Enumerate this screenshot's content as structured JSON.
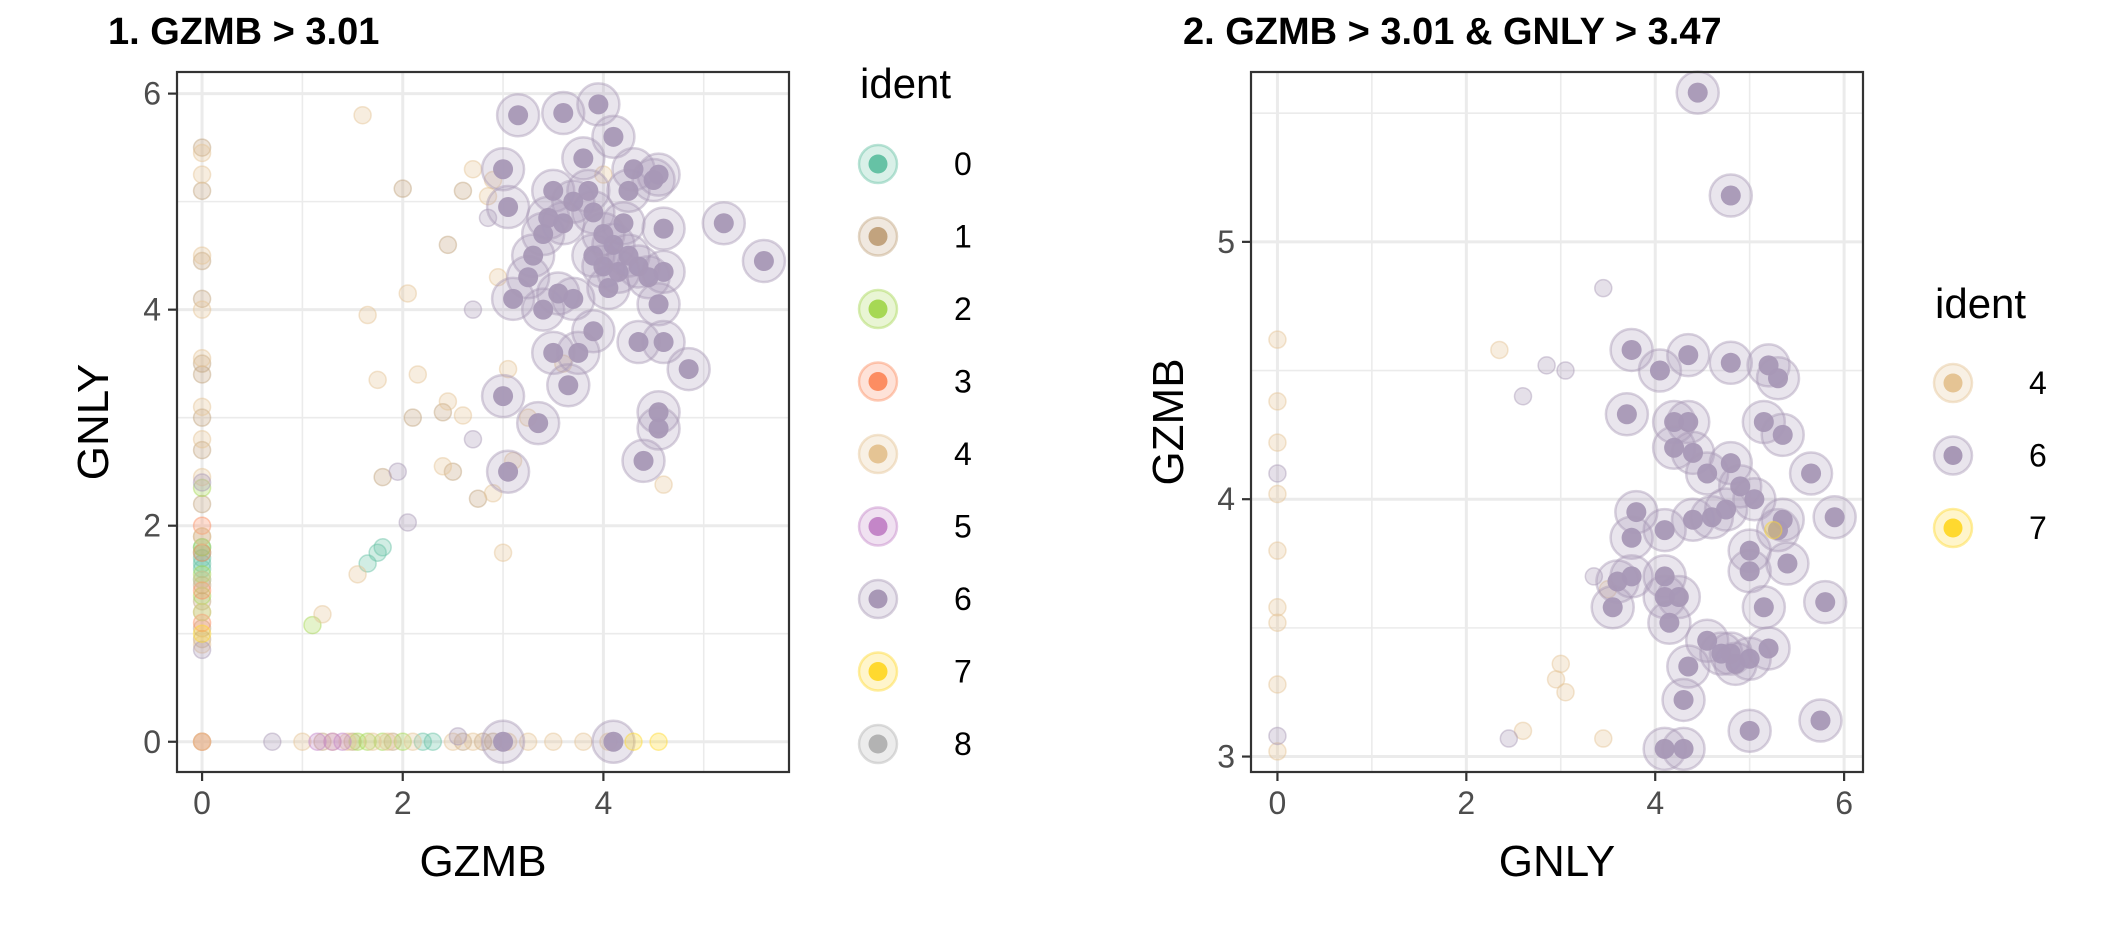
{
  "colors": {
    "0": "#66C2A5",
    "1": "#C2A37E",
    "2": "#A6D854",
    "3": "#FC8D62",
    "4": "#E5C494",
    "5": "#C486C8",
    "6": "#A898B6",
    "7": "#FFD92F",
    "8": "#B3B3B3"
  },
  "chart_data": [
    {
      "type": "scatter",
      "title": "1. GZMB > 3.01",
      "xlabel": "GZMB",
      "ylabel": "GNLY",
      "xlim": [
        -0.25,
        5.85
      ],
      "ylim": [
        -0.28,
        6.2
      ],
      "xticks": [
        0,
        2,
        4
      ],
      "yticks": [
        0,
        2,
        4,
        6
      ],
      "grid": true,
      "legend": {
        "title": "ident",
        "position": "right",
        "entries": [
          "0",
          "1",
          "2",
          "3",
          "4",
          "5",
          "6",
          "7",
          "8"
        ]
      },
      "series": [
        {
          "name": "0",
          "points": [
            [
              0,
              1.5
            ],
            [
              0,
              1.6
            ],
            [
              0,
              1.7
            ],
            [
              0,
              1.75
            ],
            [
              0,
              1.8
            ],
            [
              0,
              1.65
            ],
            [
              1.75,
              1.75
            ],
            [
              1.8,
              1.8
            ],
            [
              1.65,
              1.65
            ],
            [
              2.2,
              0
            ],
            [
              2.3,
              0
            ]
          ]
        },
        {
          "name": "1",
          "points": [
            [
              0,
              0
            ],
            [
              0,
              0.95
            ],
            [
              0,
              1.05
            ],
            [
              0,
              1.3
            ],
            [
              0,
              1.45
            ],
            [
              0,
              1.9
            ],
            [
              0,
              2.2
            ],
            [
              0,
              2.7
            ],
            [
              0,
              3.0
            ],
            [
              0,
              3.4
            ],
            [
              0,
              3.5
            ],
            [
              0,
              4.1
            ],
            [
              0,
              4.45
            ],
            [
              0,
              5.1
            ],
            [
              0,
              5.5
            ],
            [
              2.0,
              5.12
            ],
            [
              2.1,
              3.0
            ],
            [
              1.8,
              2.45
            ],
            [
              2.75,
              2.25
            ],
            [
              2.4,
              3.05
            ],
            [
              2.5,
              2.5
            ],
            [
              2.45,
              4.6
            ],
            [
              2.6,
              5.1
            ],
            [
              1.2,
              0
            ],
            [
              1.5,
              0
            ],
            [
              1.9,
              0
            ],
            [
              2.6,
              0
            ],
            [
              2.8,
              0
            ],
            [
              2.9,
              0
            ]
          ]
        },
        {
          "name": "2",
          "points": [
            [
              0,
              1.2
            ],
            [
              0,
              1.35
            ],
            [
              0,
              1.55
            ],
            [
              0,
              1.8
            ],
            [
              0,
              2.35
            ],
            [
              1.1,
              1.08
            ],
            [
              1.55,
              0
            ],
            [
              1.65,
              0
            ],
            [
              1.8,
              0
            ],
            [
              2.0,
              0
            ]
          ]
        },
        {
          "name": "3",
          "points": [
            [
              0,
              0
            ],
            [
              0,
              1.75
            ],
            [
              0,
              2.0
            ],
            [
              0,
              1.4
            ],
            [
              0,
              1.1
            ]
          ]
        },
        {
          "name": "4",
          "points": [
            [
              0,
              0
            ],
            [
              0,
              0.9
            ],
            [
              0,
              1.2
            ],
            [
              0,
              1.5
            ],
            [
              0,
              1.9
            ],
            [
              0,
              2.45
            ],
            [
              0,
              2.8
            ],
            [
              0,
              3.1
            ],
            [
              0,
              3.55
            ],
            [
              0,
              4.0
            ],
            [
              0,
              4.5
            ],
            [
              0,
              5.25
            ],
            [
              0,
              5.45
            ],
            [
              1.65,
              3.95
            ],
            [
              1.75,
              3.35
            ],
            [
              1.55,
              1.55
            ],
            [
              1.2,
              1.18
            ],
            [
              2.05,
              4.15
            ],
            [
              2.15,
              3.4
            ],
            [
              2.45,
              3.15
            ],
            [
              2.4,
              2.55
            ],
            [
              2.6,
              3.02
            ],
            [
              2.7,
              5.3
            ],
            [
              2.9,
              5.2
            ],
            [
              2.95,
              4.3
            ],
            [
              3.0,
              1.75
            ],
            [
              3.05,
              3.45
            ],
            [
              3.1,
              2.6
            ],
            [
              3.25,
              3.0
            ],
            [
              3.6,
              3.5
            ],
            [
              4.0,
              5.25
            ],
            [
              4.6,
              2.38
            ],
            [
              1.6,
              5.8
            ],
            [
              1.0,
              0
            ],
            [
              1.3,
              0
            ],
            [
              1.45,
              0
            ],
            [
              1.7,
              0
            ],
            [
              1.85,
              0
            ],
            [
              2.1,
              0
            ],
            [
              2.5,
              0
            ],
            [
              2.7,
              0
            ],
            [
              3.05,
              0
            ],
            [
              3.25,
              0
            ],
            [
              3.5,
              0
            ],
            [
              3.8,
              0
            ],
            [
              4.05,
              0
            ],
            [
              2.9,
              2.3
            ],
            [
              2.85,
              5.05
            ]
          ]
        },
        {
          "name": "5",
          "points": [
            [
              1.15,
              0
            ],
            [
              1.3,
              0
            ],
            [
              1.4,
              0
            ]
          ]
        },
        {
          "name": "6",
          "points": [
            [
              3.15,
              5.8
            ],
            [
              3.6,
              5.82
            ],
            [
              3.95,
              5.9
            ],
            [
              4.1,
              5.6
            ],
            [
              3.05,
              4.95
            ],
            [
              3.1,
              4.1
            ],
            [
              3.3,
              4.5
            ],
            [
              3.5,
              5.1
            ],
            [
              3.6,
              4.8
            ],
            [
              3.7,
              5.0
            ],
            [
              3.8,
              5.4
            ],
            [
              3.9,
              4.9
            ],
            [
              4.0,
              4.4
            ],
            [
              4.05,
              4.2
            ],
            [
              4.1,
              4.6
            ],
            [
              4.2,
              4.8
            ],
            [
              4.25,
              5.1
            ],
            [
              4.3,
              5.3
            ],
            [
              4.35,
              4.4
            ],
            [
              4.45,
              4.3
            ],
            [
              4.5,
              5.2
            ],
            [
              4.55,
              5.25
            ],
            [
              4.6,
              4.75
            ],
            [
              4.6,
              4.35
            ],
            [
              4.55,
              4.05
            ],
            [
              5.2,
              4.8
            ],
            [
              5.6,
              4.45
            ],
            [
              4.85,
              3.45
            ],
            [
              4.6,
              3.7
            ],
            [
              4.35,
              3.7
            ],
            [
              3.9,
              3.8
            ],
            [
              3.75,
              3.6
            ],
            [
              3.65,
              3.3
            ],
            [
              3.5,
              3.6
            ],
            [
              3.4,
              4.0
            ],
            [
              3.55,
              4.15
            ],
            [
              3.7,
              4.1
            ],
            [
              3.35,
              2.95
            ],
            [
              3.05,
              2.5
            ],
            [
              4.4,
              2.6
            ],
            [
              4.55,
              3.05
            ],
            [
              4.55,
              2.9
            ],
            [
              3.25,
              4.3
            ],
            [
              3.4,
              4.7
            ],
            [
              3.9,
              4.5
            ],
            [
              4.15,
              4.35
            ],
            [
              4.25,
              4.5
            ],
            [
              3.45,
              4.85
            ],
            [
              3.85,
              5.1
            ],
            [
              4.0,
              4.7
            ],
            [
              3.0,
              0
            ],
            [
              4.1,
              0
            ],
            [
              0.7,
              0
            ],
            [
              0,
              0.85
            ],
            [
              0,
              2.4
            ],
            [
              2.05,
              2.03
            ],
            [
              1.95,
              2.5
            ],
            [
              2.7,
              2.8
            ],
            [
              3.0,
              3.2
            ],
            [
              2.85,
              4.85
            ],
            [
              2.7,
              4.0
            ],
            [
              3.0,
              5.3
            ],
            [
              2.55,
              0.05
            ]
          ]
        },
        {
          "name": "7",
          "points": [
            [
              0,
              1.0
            ],
            [
              4.3,
              0
            ],
            [
              4.55,
              0
            ]
          ]
        },
        {
          "name": "8",
          "points": []
        }
      ]
    },
    {
      "type": "scatter",
      "title": "2. GZMB > 3.01 & GNLY > 3.47",
      "xlabel": "GNLY",
      "ylabel": "GZMB",
      "xlim": [
        -0.28,
        6.2
      ],
      "ylim": [
        2.94,
        5.66
      ],
      "xticks": [
        0,
        2,
        4,
        6
      ],
      "yticks": [
        3,
        4,
        5
      ],
      "grid": true,
      "legend": {
        "title": "ident",
        "position": "right",
        "entries": [
          "4",
          "6",
          "7"
        ]
      },
      "series": [
        {
          "name": "4",
          "points": [
            [
              0,
              3.02
            ],
            [
              0,
              3.28
            ],
            [
              0,
              3.52
            ],
            [
              0,
              3.58
            ],
            [
              0,
              3.8
            ],
            [
              0,
              4.02
            ],
            [
              0,
              4.22
            ],
            [
              0,
              4.38
            ],
            [
              0,
              4.62
            ],
            [
              2.35,
              4.58
            ],
            [
              2.6,
              3.1
            ],
            [
              2.95,
              3.3
            ],
            [
              3.0,
              3.36
            ],
            [
              3.05,
              3.25
            ],
            [
              3.45,
              3.07
            ],
            [
              3.5,
              3.65
            ]
          ]
        },
        {
          "name": "6",
          "points": [
            [
              4.45,
              5.58
            ],
            [
              4.8,
              5.18
            ],
            [
              3.75,
              4.58
            ],
            [
              4.05,
              4.5
            ],
            [
              4.35,
              4.56
            ],
            [
              4.8,
              4.53
            ],
            [
              5.2,
              4.52
            ],
            [
              5.3,
              4.47
            ],
            [
              3.7,
              4.33
            ],
            [
              4.2,
              4.3
            ],
            [
              4.35,
              4.3
            ],
            [
              5.15,
              4.3
            ],
            [
              5.35,
              4.25
            ],
            [
              4.2,
              4.2
            ],
            [
              4.4,
              4.18
            ],
            [
              4.55,
              4.1
            ],
            [
              4.8,
              4.14
            ],
            [
              4.9,
              4.05
            ],
            [
              5.05,
              4.0
            ],
            [
              5.65,
              4.1
            ],
            [
              5.9,
              3.93
            ],
            [
              3.8,
              3.95
            ],
            [
              3.75,
              3.85
            ],
            [
              4.1,
              3.88
            ],
            [
              4.4,
              3.92
            ],
            [
              4.6,
              3.93
            ],
            [
              4.75,
              3.96
            ],
            [
              5.0,
              3.8
            ],
            [
              5.35,
              3.92
            ],
            [
              5.3,
              3.88
            ],
            [
              3.6,
              3.68
            ],
            [
              3.75,
              3.7
            ],
            [
              3.55,
              3.58
            ],
            [
              4.1,
              3.7
            ],
            [
              4.25,
              3.62
            ],
            [
              4.1,
              3.62
            ],
            [
              5.0,
              3.72
            ],
            [
              5.4,
              3.75
            ],
            [
              4.15,
              3.52
            ],
            [
              4.55,
              3.45
            ],
            [
              4.7,
              3.4
            ],
            [
              4.85,
              3.36
            ],
            [
              5.0,
              3.38
            ],
            [
              5.2,
              3.42
            ],
            [
              4.35,
              3.35
            ],
            [
              4.8,
              3.4
            ],
            [
              5.15,
              3.58
            ],
            [
              5.8,
              3.6
            ],
            [
              4.3,
              3.22
            ],
            [
              5.0,
              3.1
            ],
            [
              5.75,
              3.14
            ],
            [
              4.1,
              3.03
            ],
            [
              4.3,
              3.03
            ],
            [
              0,
              4.1
            ],
            [
              0,
              3.08
            ],
            [
              2.6,
              4.4
            ],
            [
              2.85,
              4.52
            ],
            [
              3.05,
              4.5
            ],
            [
              3.45,
              4.82
            ],
            [
              3.35,
              3.7
            ],
            [
              2.45,
              3.07
            ]
          ]
        },
        {
          "name": "7",
          "points": [
            [
              5.25,
              3.88
            ]
          ]
        }
      ]
    }
  ]
}
